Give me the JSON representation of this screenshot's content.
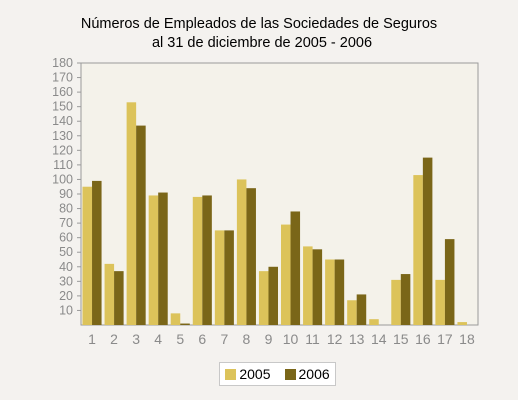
{
  "chart_data": {
    "type": "bar",
    "title": "Números de Empleados de las Sociedades de Seguros",
    "subtitle": "al 31 de diciembre de 2005 - 2006",
    "categories": [
      "1",
      "2",
      "3",
      "4",
      "5",
      "6",
      "7",
      "8",
      "9",
      "10",
      "11",
      "12",
      "13",
      "14",
      "15",
      "16",
      "17",
      "18"
    ],
    "series": [
      {
        "name": "2005",
        "color": "#dcc35a",
        "values": [
          95,
          42,
          153,
          89,
          8,
          88,
          65,
          100,
          37,
          69,
          54,
          45,
          17,
          4,
          31,
          103,
          31,
          2
        ]
      },
      {
        "name": "2006",
        "color": "#7a6618",
        "values": [
          99,
          37,
          137,
          91,
          1,
          89,
          65,
          94,
          40,
          78,
          52,
          45,
          21,
          0,
          35,
          115,
          59,
          0
        ]
      }
    ],
    "ylim": [
      0,
      180
    ],
    "yticks": [
      10,
      20,
      30,
      40,
      50,
      60,
      70,
      80,
      90,
      100,
      110,
      120,
      130,
      140,
      150,
      160,
      170,
      180
    ],
    "grid": false,
    "legend_position": "bottom"
  }
}
